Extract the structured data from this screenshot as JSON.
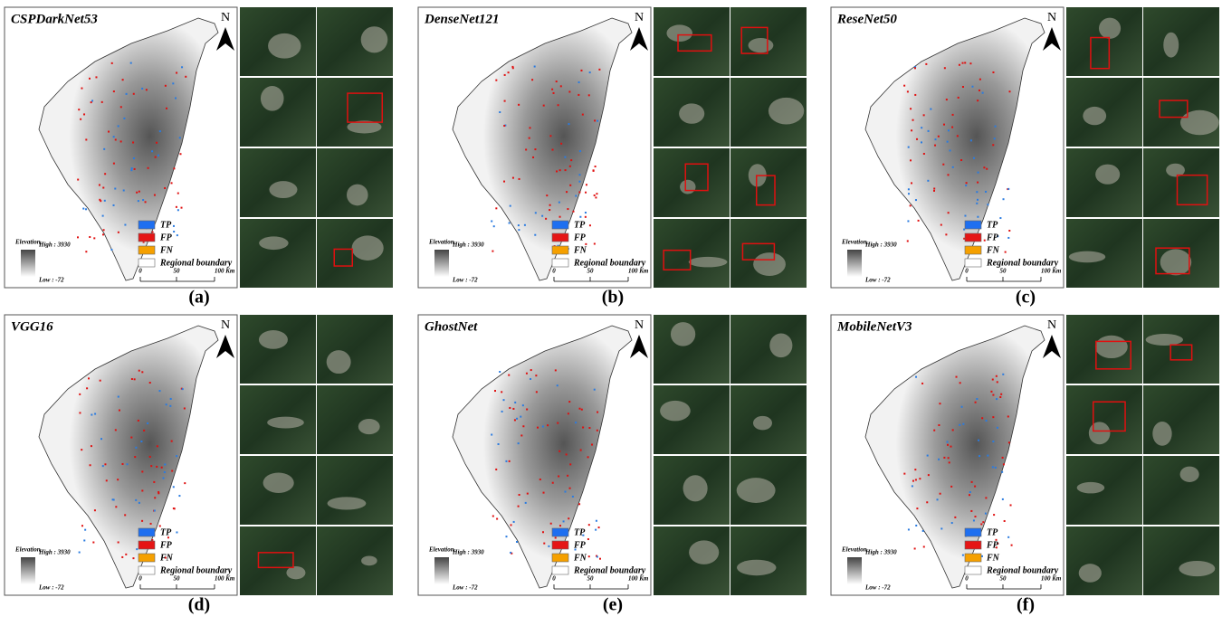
{
  "panels": [
    {
      "title": "CSPDarkNet53",
      "label": "(a)"
    },
    {
      "title": "DenseNet121",
      "label": "(b)"
    },
    {
      "title": "ReseNet50",
      "label": "(c)"
    },
    {
      "title": "VGG16",
      "label": "(d)"
    },
    {
      "title": "GhostNet",
      "label": "(e)"
    },
    {
      "title": "MobileNetV3",
      "label": "(f)"
    }
  ],
  "legend": {
    "items": [
      "TP",
      "FP",
      "FN",
      "Regional boundary"
    ]
  },
  "elevation": {
    "title": "Elevation",
    "high": "High : 3930",
    "low": "Low : -72"
  },
  "scale": {
    "ticks": [
      "0",
      "50",
      "100 Km"
    ]
  },
  "north": "N"
}
